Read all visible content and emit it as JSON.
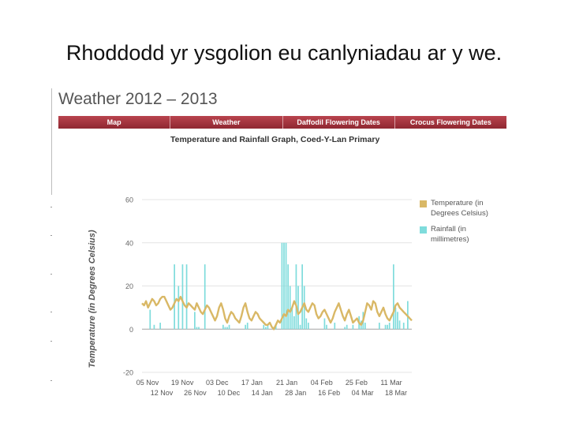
{
  "slide": {
    "title": "Rhoddodd yr ysgolion eu canlyniadau ar y we."
  },
  "page": {
    "heading": "Weather 2012 – 2013"
  },
  "nav": {
    "items": [
      "Map",
      "Weather",
      "Daffodil Flowering Dates",
      "Crocus Flowering Dates"
    ]
  },
  "graph_title": "Temperature and Rainfall Graph, Coed-Y-Lan Primary",
  "colors": {
    "temperature": "#d9b866",
    "rainfall": "#7fdcdc",
    "nav": "#a4343e"
  },
  "chart_data": {
    "type": "bar",
    "title": "Temperature and Rainfall Graph, Coed-Y-Lan Primary",
    "ylabel": "Temperature (in Degrees Celsius)",
    "ylim": [
      -20,
      60
    ],
    "yticks": [
      "60",
      "40",
      "20",
      "0",
      "-20"
    ],
    "xticks_top": [
      "05 Nov",
      "19 Nov",
      "03 Dec",
      "17 Jan",
      "21 Jan",
      "04 Feb",
      "25 Feb",
      "11 Mar"
    ],
    "xticks_bottom": [
      "12 Nov",
      "26 Nov",
      "10 Dec",
      "14 Jan",
      "28 Jan",
      "16 Feb",
      "04 Mar",
      "18 Mar"
    ],
    "x_range": [
      0,
      133
    ],
    "series": [
      {
        "name": "Temperature (in Degrees Celsius)",
        "type": "line",
        "values": [
          12,
          11,
          13,
          10,
          12,
          14,
          13,
          11,
          12,
          14,
          15,
          15,
          13,
          11,
          9,
          10,
          12,
          14,
          13,
          15,
          13,
          11,
          10,
          12,
          11,
          10,
          9,
          12,
          10,
          8,
          7,
          9,
          11,
          10,
          8,
          6,
          4,
          6,
          10,
          12,
          9,
          5,
          3,
          6,
          8,
          7,
          5,
          4,
          3,
          6,
          10,
          12,
          8,
          5,
          4,
          6,
          8,
          7,
          5,
          4,
          3,
          2,
          2,
          3,
          1,
          0,
          2,
          4,
          3,
          5,
          7,
          6,
          9,
          8,
          10,
          13,
          11,
          7,
          8,
          10,
          12,
          9,
          8,
          10,
          12,
          11,
          7,
          5,
          6,
          8,
          9,
          7,
          5,
          3,
          5,
          8,
          10,
          12,
          9,
          6,
          4,
          7,
          9,
          6,
          3,
          4,
          5,
          3,
          2,
          4,
          8,
          12,
          11,
          9,
          13,
          12,
          8,
          6,
          8,
          10,
          7,
          5,
          4,
          6,
          8,
          11,
          12,
          10,
          9,
          8,
          7,
          6,
          5,
          4
        ]
      },
      {
        "name": "Rainfall (in millimetres)",
        "type": "bar",
        "points": [
          [
            4,
            9
          ],
          [
            6,
            2
          ],
          [
            9,
            3
          ],
          [
            16,
            30
          ],
          [
            18,
            20
          ],
          [
            20,
            30
          ],
          [
            22,
            30
          ],
          [
            26,
            8
          ],
          [
            27,
            1
          ],
          [
            28,
            1
          ],
          [
            31,
            30
          ],
          [
            40,
            2
          ],
          [
            41,
            1
          ],
          [
            42,
            1
          ],
          [
            43,
            2
          ],
          [
            51,
            2
          ],
          [
            52,
            3
          ],
          [
            60,
            2
          ],
          [
            61,
            1
          ],
          [
            62,
            2
          ],
          [
            65,
            1
          ],
          [
            66,
            2
          ],
          [
            69,
            40
          ],
          [
            70,
            40
          ],
          [
            71,
            40
          ],
          [
            72,
            30
          ],
          [
            73,
            20
          ],
          [
            74,
            10
          ],
          [
            75,
            6
          ],
          [
            76,
            30
          ],
          [
            77,
            20
          ],
          [
            78,
            2
          ],
          [
            79,
            30
          ],
          [
            80,
            20
          ],
          [
            81,
            5
          ],
          [
            82,
            3
          ],
          [
            90,
            5
          ],
          [
            91,
            2
          ],
          [
            95,
            3
          ],
          [
            100,
            1
          ],
          [
            101,
            2
          ],
          [
            104,
            2
          ],
          [
            107,
            6
          ],
          [
            108,
            4
          ],
          [
            109,
            8
          ],
          [
            110,
            3
          ],
          [
            117,
            3
          ],
          [
            120,
            2
          ],
          [
            121,
            2
          ],
          [
            122,
            3
          ],
          [
            124,
            30
          ],
          [
            125,
            10
          ],
          [
            126,
            8
          ],
          [
            127,
            4
          ],
          [
            129,
            3
          ],
          [
            131,
            13
          ]
        ]
      }
    ],
    "legend_position": "right"
  }
}
